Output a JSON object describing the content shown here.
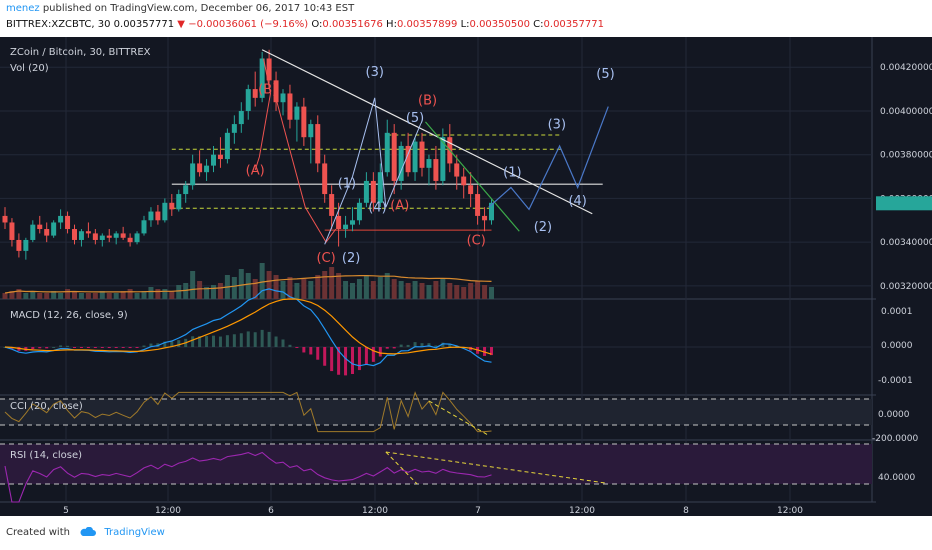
{
  "header": {
    "user": "menez",
    "published_text": "published on TradingView.com, December 06, 2017 10:43 EST",
    "symbol": "BITTREX:XZCBTC, 30",
    "last": "0.00357771",
    "arrow": "▼",
    "change": "−0.00036061 (−9.16%)",
    "o_label": "O:",
    "o_value": "0.00351676",
    "h_label": "H:",
    "h_value": "0.00357899",
    "l_label": "L:",
    "l_value": "0.00350500",
    "c_label": "C:",
    "c_value": "0.00357771"
  },
  "footer": {
    "created_with": "Created with",
    "brand": "TradingView"
  },
  "colors": {
    "background": "#131722",
    "up": "#26a69a",
    "down": "#ef5350",
    "grid": "#232838",
    "axis_text": "#cfd3dc",
    "wave_red": "#ef5350",
    "wave_blue": "#a8c0f0",
    "macd": "#2196f3",
    "signal": "#ff9800",
    "cci": "#a07a2a",
    "rsi": "#9c27b0"
  },
  "chart_data": {
    "type": "candlestick",
    "title": "ZCoin / Bitcoin, 30, BITTREX",
    "volume_label": "Vol (20)",
    "x_ticks": [
      "5",
      "12:00",
      "6",
      "12:00",
      "7",
      "12:00",
      "8",
      "12:00"
    ],
    "price_ticks": [
      "0.00420000",
      "0.00400000",
      "0.00380000",
      "0.00360000",
      "0.00340000",
      "0.00320000"
    ],
    "ylim": [
      0.00314,
      0.00432
    ],
    "candles": [
      [
        0.00352,
        0.00356,
        0.00346,
        0.00349
      ],
      [
        0.00349,
        0.00351,
        0.00338,
        0.00341
      ],
      [
        0.00341,
        0.00344,
        0.00333,
        0.00336
      ],
      [
        0.00336,
        0.00342,
        0.00332,
        0.00341
      ],
      [
        0.00341,
        0.0035,
        0.0034,
        0.00348
      ],
      [
        0.00348,
        0.00352,
        0.00344,
        0.00346
      ],
      [
        0.00346,
        0.00349,
        0.0034,
        0.00343
      ],
      [
        0.00343,
        0.0035,
        0.00342,
        0.00349
      ],
      [
        0.00349,
        0.00355,
        0.00346,
        0.00352
      ],
      [
        0.00352,
        0.00354,
        0.00344,
        0.00346
      ],
      [
        0.00346,
        0.00348,
        0.00339,
        0.00341
      ],
      [
        0.00341,
        0.00346,
        0.00338,
        0.00345
      ],
      [
        0.00345,
        0.00349,
        0.00342,
        0.00344
      ],
      [
        0.00344,
        0.00346,
        0.00339,
        0.00341
      ],
      [
        0.00341,
        0.00344,
        0.00338,
        0.00343
      ],
      [
        0.00343,
        0.00346,
        0.0034,
        0.00342
      ],
      [
        0.00342,
        0.00345,
        0.00339,
        0.00344
      ],
      [
        0.00344,
        0.00347,
        0.00341,
        0.00342
      ],
      [
        0.00342,
        0.00344,
        0.00338,
        0.0034
      ],
      [
        0.0034,
        0.00345,
        0.00339,
        0.00344
      ],
      [
        0.00344,
        0.00352,
        0.00343,
        0.0035
      ],
      [
        0.0035,
        0.00356,
        0.00347,
        0.00354
      ],
      [
        0.00354,
        0.00357,
        0.00348,
        0.0035
      ],
      [
        0.0035,
        0.0036,
        0.00349,
        0.00358
      ],
      [
        0.00358,
        0.00362,
        0.00352,
        0.00355
      ],
      [
        0.00355,
        0.00364,
        0.00354,
        0.00362
      ],
      [
        0.00362,
        0.00368,
        0.00358,
        0.00366
      ],
      [
        0.00366,
        0.0038,
        0.00364,
        0.00376
      ],
      [
        0.00376,
        0.00382,
        0.0037,
        0.00372
      ],
      [
        0.00372,
        0.00378,
        0.00368,
        0.00375
      ],
      [
        0.00375,
        0.00384,
        0.00372,
        0.0038
      ],
      [
        0.0038,
        0.00388,
        0.00374,
        0.00378
      ],
      [
        0.00378,
        0.00392,
        0.00376,
        0.0039
      ],
      [
        0.0039,
        0.00398,
        0.00385,
        0.00394
      ],
      [
        0.00394,
        0.00404,
        0.0039,
        0.004
      ],
      [
        0.004,
        0.00412,
        0.00396,
        0.0041
      ],
      [
        0.0041,
        0.00418,
        0.00402,
        0.00406
      ],
      [
        0.00406,
        0.00427,
        0.00404,
        0.00424
      ],
      [
        0.00424,
        0.00428,
        0.0041,
        0.00414
      ],
      [
        0.00414,
        0.00418,
        0.004,
        0.00404
      ],
      [
        0.00404,
        0.0041,
        0.00398,
        0.00408
      ],
      [
        0.00408,
        0.00412,
        0.00392,
        0.00396
      ],
      [
        0.00396,
        0.00404,
        0.00386,
        0.00402
      ],
      [
        0.00402,
        0.00406,
        0.00384,
        0.00388
      ],
      [
        0.00388,
        0.00396,
        0.00376,
        0.00394
      ],
      [
        0.00394,
        0.00398,
        0.00372,
        0.00376
      ],
      [
        0.00376,
        0.0038,
        0.00358,
        0.00362
      ],
      [
        0.00362,
        0.00366,
        0.00346,
        0.00352
      ],
      [
        0.00352,
        0.00358,
        0.00338,
        0.00346
      ],
      [
        0.00346,
        0.00352,
        0.00342,
        0.00348
      ],
      [
        0.00348,
        0.00356,
        0.00345,
        0.0035
      ],
      [
        0.0035,
        0.0036,
        0.00348,
        0.00358
      ],
      [
        0.00358,
        0.00372,
        0.00356,
        0.00368
      ],
      [
        0.00368,
        0.00372,
        0.00354,
        0.00358
      ],
      [
        0.00358,
        0.00376,
        0.00356,
        0.00372
      ],
      [
        0.00372,
        0.00396,
        0.0037,
        0.0039
      ],
      [
        0.0039,
        0.00394,
        0.00362,
        0.00368
      ],
      [
        0.00368,
        0.00386,
        0.00364,
        0.00384
      ],
      [
        0.00384,
        0.0039,
        0.0037,
        0.00372
      ],
      [
        0.00372,
        0.00388,
        0.00368,
        0.00386
      ],
      [
        0.00386,
        0.0039,
        0.0037,
        0.00374
      ],
      [
        0.00374,
        0.0038,
        0.00366,
        0.00378
      ],
      [
        0.00378,
        0.00384,
        0.00364,
        0.00368
      ],
      [
        0.00368,
        0.00392,
        0.00366,
        0.00388
      ],
      [
        0.00388,
        0.00394,
        0.00372,
        0.00376
      ],
      [
        0.00376,
        0.0038,
        0.00364,
        0.0037
      ],
      [
        0.0037,
        0.00374,
        0.0036,
        0.00366
      ],
      [
        0.00366,
        0.00372,
        0.00356,
        0.00362
      ],
      [
        0.00362,
        0.00366,
        0.00348,
        0.00352
      ],
      [
        0.00352,
        0.00356,
        0.00345,
        0.0035
      ],
      [
        0.0035,
        0.0036,
        0.00348,
        0.00358
      ]
    ],
    "volume": [
      3,
      4,
      5,
      3,
      4,
      3,
      3,
      4,
      3,
      5,
      4,
      3,
      3,
      3,
      4,
      3,
      3,
      4,
      5,
      3,
      4,
      6,
      5,
      5,
      4,
      7,
      8,
      14,
      9,
      6,
      7,
      8,
      12,
      11,
      15,
      13,
      10,
      18,
      14,
      12,
      9,
      11,
      8,
      10,
      9,
      12,
      14,
      16,
      13,
      9,
      8,
      10,
      12,
      9,
      11,
      13,
      10,
      9,
      8,
      9,
      8,
      7,
      9,
      10,
      8,
      7,
      6,
      8,
      9,
      7,
      6
    ],
    "indicators": [
      {
        "name": "MACD (12, 26, close, 9)",
        "ticks": [
          "0.0001",
          "0.0000",
          "-0.0001"
        ],
        "ylim": [
          -0.00014,
          0.00014
        ]
      },
      {
        "name": "CCI (20, close)",
        "ticks": [
          "0.0000",
          "-200.0000"
        ]
      },
      {
        "name": "RSI (14, close)",
        "ticks": [
          "40.0000"
        ]
      }
    ],
    "wave_labels": [
      {
        "text": "(B)",
        "color": "red",
        "t": 37.8,
        "p": 0.00408
      },
      {
        "text": "(A)",
        "color": "red",
        "t": 36.0,
        "p": 0.00371
      },
      {
        "text": "(C)",
        "color": "red",
        "t": 46.2,
        "p": 0.00331
      },
      {
        "text": "(3)",
        "color": "blue",
        "t": 53.2,
        "p": 0.00416
      },
      {
        "text": "(1)",
        "color": "blue",
        "t": 49.2,
        "p": 0.00365
      },
      {
        "text": "(2)",
        "color": "blue",
        "t": 49.8,
        "p": 0.00331
      },
      {
        "text": "(4)",
        "color": "blue",
        "t": 53.6,
        "p": 0.00354
      },
      {
        "text": "(5)",
        "color": "blue",
        "t": 59.0,
        "p": 0.00395
      },
      {
        "text": "(B)",
        "color": "red",
        "t": 60.8,
        "p": 0.00403
      },
      {
        "text": "(A)",
        "color": "red",
        "t": 56.8,
        "p": 0.00355
      },
      {
        "text": "(C)",
        "color": "red",
        "t": 67.8,
        "p": 0.00339
      },
      {
        "text": "(1)",
        "color": "blue",
        "t": 73.0,
        "p": 0.0037
      },
      {
        "text": "(2)",
        "color": "blue",
        "t": 77.4,
        "p": 0.00345
      },
      {
        "text": "(3)",
        "color": "blue",
        "t": 79.4,
        "p": 0.00392
      },
      {
        "text": "(4)",
        "color": "blue",
        "t": 82.4,
        "p": 0.00357
      },
      {
        "text": "(5)",
        "color": "blue",
        "t": 86.4,
        "p": 0.00415
      }
    ]
  }
}
